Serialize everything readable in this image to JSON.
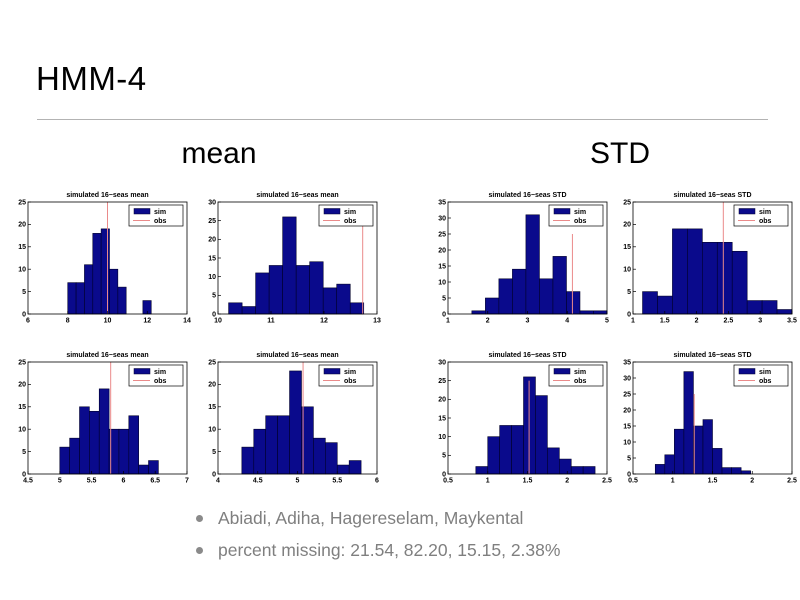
{
  "slide": {
    "title": "HMM-4",
    "group_headers": [
      {
        "label": "mean"
      },
      {
        "label": "STD"
      }
    ],
    "bullets": [
      "Abiadi, Adiha, Hagereselam, Maykental",
      "percent missing: 21.54, 82.20, 15.15, 2.38%"
    ]
  },
  "colors": {
    "bar_fill": "#0a0a8c",
    "bar_edge": "#00002a",
    "obs_line": "#ea8a8a",
    "axis": "#000000",
    "bullet_text": "#7f7f7f",
    "divider": "#b3b3b3"
  },
  "legend": {
    "sim": "sim",
    "obs": "obs",
    "position": "top-right"
  },
  "chart_data": [
    {
      "type": "bar",
      "title": "simulated 16−seas mean",
      "xlim": [
        6,
        14
      ],
      "xticks": [
        6,
        8,
        10,
        12,
        14
      ],
      "ylim": [
        0,
        25
      ],
      "yticks": [
        0,
        5,
        10,
        15,
        20,
        25
      ],
      "bin_start": 8.0,
      "bin_width": 0.42,
      "values": [
        7,
        7,
        11,
        18,
        19,
        10,
        6,
        0,
        0,
        3
      ],
      "obs_x": 10.0,
      "obs_top": 25,
      "legend_entries": [
        "sim",
        "obs"
      ]
    },
    {
      "type": "bar",
      "title": "simulated 16−seas mean",
      "xlim": [
        10,
        13
      ],
      "xticks": [
        10,
        11,
        12,
        13
      ],
      "ylim": [
        0,
        30
      ],
      "yticks": [
        0,
        5,
        10,
        15,
        20,
        25,
        30
      ],
      "bin_start": 10.2,
      "bin_width": 0.255,
      "values": [
        3,
        2,
        11,
        13,
        26,
        13,
        14,
        7,
        8,
        3
      ],
      "obs_x": 12.73,
      "obs_top": 25,
      "legend_entries": [
        "sim",
        "obs"
      ]
    },
    {
      "type": "bar",
      "title": "simulated 16−seas STD",
      "xlim": [
        1,
        5
      ],
      "xticks": [
        1,
        2,
        3,
        4,
        5
      ],
      "ylim": [
        0,
        35
      ],
      "yticks": [
        0,
        5,
        10,
        15,
        20,
        25,
        30,
        35
      ],
      "bin_start": 1.6,
      "bin_width": 0.34,
      "values": [
        1,
        5,
        11,
        14,
        31,
        11,
        18,
        7,
        1,
        1
      ],
      "obs_x": 4.13,
      "obs_top": 25,
      "legend_entries": [
        "sim",
        "obs"
      ]
    },
    {
      "type": "bar",
      "title": "simulated 16−seas STD",
      "xlim": [
        1,
        3.5
      ],
      "xticks": [
        1,
        1.5,
        2,
        2.5,
        3,
        3.5
      ],
      "ylim": [
        0,
        25
      ],
      "yticks": [
        0,
        5,
        10,
        15,
        20,
        25
      ],
      "bin_start": 1.15,
      "bin_width": 0.235,
      "values": [
        5,
        4,
        19,
        19,
        16,
        16,
        14,
        3,
        3,
        1
      ],
      "obs_x": 2.42,
      "obs_top": 25,
      "legend_entries": [
        "sim",
        "obs"
      ]
    },
    {
      "type": "bar",
      "title": "simulated 16−seas mean",
      "xlim": [
        4.5,
        7
      ],
      "xticks": [
        4.5,
        5,
        5.5,
        6,
        6.5,
        7
      ],
      "ylim": [
        0,
        25
      ],
      "yticks": [
        0,
        5,
        10,
        15,
        20,
        25
      ],
      "bin_start": 5.0,
      "bin_width": 0.155,
      "values": [
        6,
        8,
        15,
        14,
        19,
        10,
        10,
        13,
        2,
        3
      ],
      "obs_x": 5.8,
      "obs_top": 25,
      "legend_entries": [
        "sim",
        "obs"
      ]
    },
    {
      "type": "bar",
      "title": "simulated 16−seas mean",
      "xlim": [
        4,
        6
      ],
      "xticks": [
        4,
        4.5,
        5,
        5.5,
        6
      ],
      "ylim": [
        0,
        25
      ],
      "yticks": [
        0,
        5,
        10,
        15,
        20,
        25
      ],
      "bin_start": 4.3,
      "bin_width": 0.15,
      "values": [
        6,
        10,
        13,
        13,
        23,
        15,
        8,
        7,
        2,
        3
      ],
      "obs_x": 5.07,
      "obs_top": 25,
      "legend_entries": [
        "sim",
        "obs"
      ]
    },
    {
      "type": "bar",
      "title": "simulated 16−seas STD",
      "xlim": [
        0.5,
        2.5
      ],
      "xticks": [
        0.5,
        1,
        1.5,
        2,
        2.5
      ],
      "ylim": [
        0,
        30
      ],
      "yticks": [
        0,
        5,
        10,
        15,
        20,
        25,
        30
      ],
      "bin_start": 0.85,
      "bin_width": 0.15,
      "values": [
        2,
        10,
        13,
        13,
        26,
        21,
        7,
        4,
        2,
        2
      ],
      "obs_x": 1.52,
      "obs_top": 25,
      "legend_entries": [
        "sim",
        "obs"
      ]
    },
    {
      "type": "bar",
      "title": "simulated 16−seas STD",
      "xlim": [
        0.5,
        2.5
      ],
      "xticks": [
        0.5,
        1,
        1.5,
        2,
        2.5
      ],
      "ylim": [
        0,
        35
      ],
      "yticks": [
        0,
        5,
        10,
        15,
        20,
        25,
        30,
        35
      ],
      "bin_start": 0.78,
      "bin_width": 0.12,
      "values": [
        3,
        6,
        14,
        32,
        15,
        17,
        8,
        2,
        2,
        1
      ],
      "obs_x": 1.27,
      "obs_top": 25,
      "legend_entries": [
        "sim",
        "obs"
      ]
    }
  ]
}
